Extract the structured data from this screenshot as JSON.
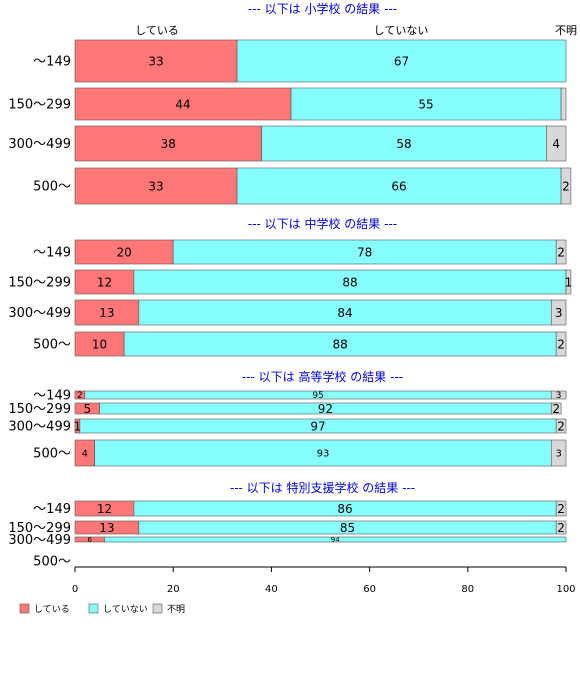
{
  "colors": {
    "yes": "#ff7777",
    "no": "#88ffff",
    "unknown": "#d8d8d8"
  },
  "chart_data": {
    "type": "bar",
    "orientation": "horizontal",
    "stacked": true,
    "xlim": [
      0,
      100
    ],
    "xticks": [
      "0",
      "20",
      "40",
      "60",
      "80",
      "100"
    ],
    "series_names": [
      "している",
      "していない",
      "不明"
    ],
    "top_labels": [
      "している",
      "していない",
      "不明"
    ],
    "legend_position": "bottom-left",
    "sections": [
      {
        "title": "--- 以下は 小学校 の結果 ---",
        "categories": [
          "〜149",
          "150〜299",
          "300〜499",
          "500〜"
        ],
        "rows": [
          {
            "values": [
              33,
              67,
              0
            ],
            "labels": [
              "33",
              "67",
              ""
            ]
          },
          {
            "values": [
              44,
              55,
              1
            ],
            "labels": [
              "44",
              "55",
              ""
            ]
          },
          {
            "values": [
              38,
              58,
              4
            ],
            "labels": [
              "38",
              "58",
              "4"
            ]
          },
          {
            "values": [
              33,
              66,
              2
            ],
            "labels": [
              "33",
              "66",
              "2"
            ]
          }
        ]
      },
      {
        "title": "--- 以下は 中学校 の結果 ---",
        "categories": [
          "〜149",
          "150〜299",
          "300〜499",
          "500〜"
        ],
        "rows": [
          {
            "values": [
              20,
              78,
              2
            ],
            "labels": [
              "20",
              "78",
              "2"
            ]
          },
          {
            "values": [
              12,
              88,
              1
            ],
            "labels": [
              "12",
              "88",
              "1"
            ]
          },
          {
            "values": [
              13,
              84,
              3
            ],
            "labels": [
              "13",
              "84",
              "3"
            ]
          },
          {
            "values": [
              10,
              88,
              2
            ],
            "labels": [
              "10",
              "88",
              "2"
            ]
          }
        ]
      },
      {
        "title": "--- 以下は 高等学校 の結果 ---",
        "categories": [
          "〜149",
          "150〜299",
          "300〜499",
          "500〜"
        ],
        "rows": [
          {
            "values": [
              2,
              95,
              3
            ],
            "labels": [
              "2",
              "95",
              "3"
            ]
          },
          {
            "values": [
              5,
              92,
              2
            ],
            "labels": [
              "5",
              "92",
              "2"
            ]
          },
          {
            "values": [
              1,
              97,
              2
            ],
            "labels": [
              "1",
              "97",
              "2"
            ]
          },
          {
            "values": [
              4,
              93,
              3
            ],
            "labels": [
              "4",
              "93",
              "3"
            ]
          }
        ]
      },
      {
        "title": "--- 以下は 特別支援学校 の結果 ---",
        "categories": [
          "〜149",
          "150〜299",
          "300〜499",
          "500〜"
        ],
        "rows": [
          {
            "values": [
              12,
              86,
              2
            ],
            "labels": [
              "12",
              "86",
              "2"
            ]
          },
          {
            "values": [
              13,
              85,
              2
            ],
            "labels": [
              "13",
              "85",
              "2"
            ]
          },
          {
            "values": [
              6,
              94,
              0
            ],
            "labels": [
              "6",
              "94",
              ""
            ]
          },
          {
            "values": [
              0,
              0,
              0
            ],
            "labels": [
              "",
              "",
              ""
            ]
          }
        ]
      }
    ]
  }
}
